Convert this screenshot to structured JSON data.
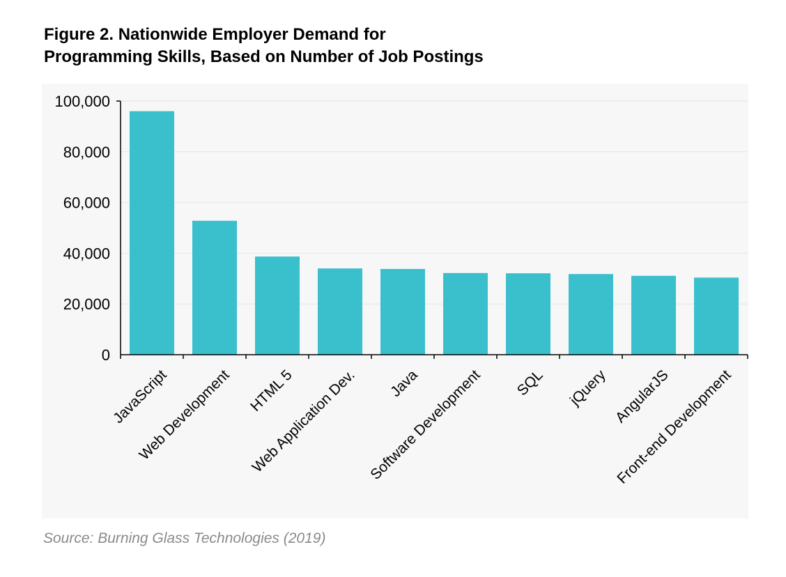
{
  "title_lines": [
    "Figure 2. Nationwide Employer Demand for",
    "Programming Skills, Based on Number of Job Postings"
  ],
  "source": "Source: Burning Glass Technologies (2019)",
  "colors": {
    "bar": "#3ac0cd",
    "grid": "#e6e6e6",
    "panel": "#f7f7f7",
    "axis": "#000000"
  },
  "chart_data": {
    "type": "bar",
    "categories": [
      "JavaScript",
      "Web Development",
      "HTML 5",
      "Web Application Dev.",
      "Java",
      "Software Development",
      "SQL",
      "jQuery",
      "AngularJS",
      "Front-end Development"
    ],
    "values": [
      96000,
      52800,
      38700,
      34000,
      33800,
      32200,
      32100,
      31800,
      31100,
      30400
    ],
    "y_ticks": [
      {
        "value": 0,
        "label": "0"
      },
      {
        "value": 20000,
        "label": "20,000"
      },
      {
        "value": 40000,
        "label": "40,000"
      },
      {
        "value": 60000,
        "label": "60,000"
      },
      {
        "value": 80000,
        "label": "80,000"
      },
      {
        "value": 100000,
        "label": "100,000"
      }
    ],
    "ylim": [
      0,
      100000
    ],
    "grid": true,
    "legend": "none"
  }
}
